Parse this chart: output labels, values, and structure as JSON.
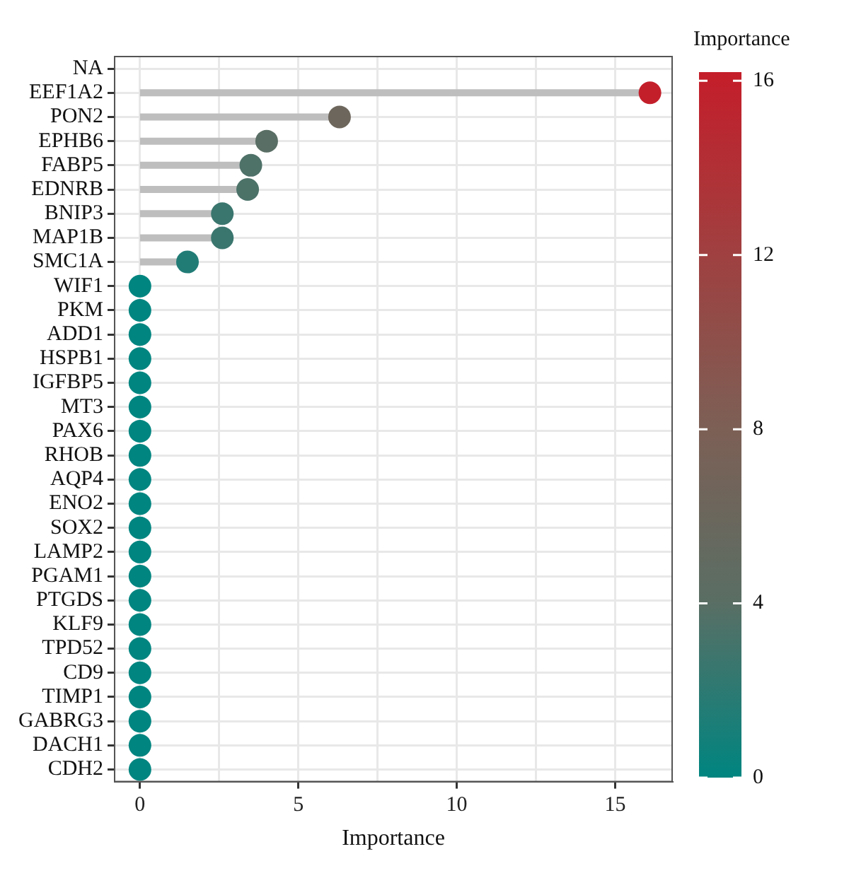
{
  "chart_data": {
    "type": "lollipop",
    "orientation": "horizontal",
    "xlabel": "Importance",
    "clabel": "Importance",
    "categories": [
      "NA",
      "EEF1A2",
      "PON2",
      "EPHB6",
      "FABP5",
      "EDNRB",
      "BNIP3",
      "MAP1B",
      "SMC1A",
      "WIF1",
      "PKM",
      "ADD1",
      "HSPB1",
      "IGFBP5",
      "MT3",
      "PAX6",
      "RHOB",
      "AQP4",
      "ENO2",
      "SOX2",
      "LAMP2",
      "PGAM1",
      "PTGDS",
      "KLF9",
      "TPD52",
      "CD9",
      "TIMP1",
      "GABRG3",
      "DACH1",
      "CDH2"
    ],
    "values": [
      null,
      16.1,
      6.3,
      4.0,
      3.5,
      3.4,
      2.6,
      2.6,
      1.5,
      0,
      0,
      0,
      0,
      0,
      0,
      0,
      0,
      0,
      0,
      0,
      0,
      0,
      0,
      0,
      0,
      0,
      0,
      0,
      0,
      0
    ],
    "cvalues": [
      null,
      16.1,
      6.3,
      4.0,
      3.5,
      3.4,
      2.6,
      2.6,
      1.5,
      0,
      0,
      0,
      0,
      0,
      0,
      0,
      0,
      0,
      0,
      0,
      0,
      0,
      0,
      0,
      0,
      0,
      0,
      0,
      0,
      0
    ],
    "xlim": [
      -0.8,
      16.8
    ],
    "xticks": [
      0,
      {
        "value": 2.5,
        "label": null
      },
      5,
      {
        "value": 7.5,
        "label": null
      },
      10,
      {
        "value": 12.5,
        "label": null
      },
      15
    ],
    "clim": [
      0,
      16.2
    ],
    "cticks": [
      0,
      4,
      8,
      12,
      16
    ],
    "grid": true,
    "legend": false,
    "marker": "circle"
  }
}
